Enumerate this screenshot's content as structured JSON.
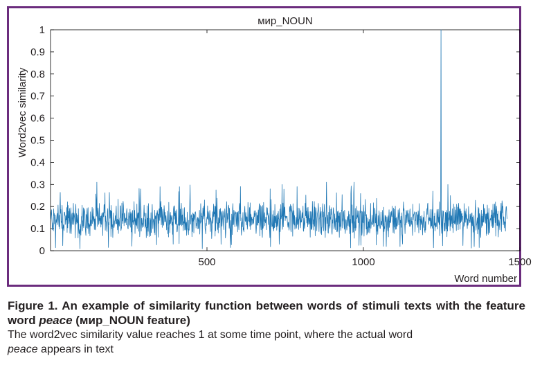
{
  "chart_data": {
    "type": "line",
    "title": "мир_NOUN",
    "xlabel": "Word number",
    "ylabel": "Word2vec similarity",
    "xlim": [
      0,
      1500
    ],
    "ylim": [
      0,
      1
    ],
    "xticks": [
      "500",
      "1000",
      "1500"
    ],
    "xtick_values": [
      500,
      1000,
      1500
    ],
    "yticks": [
      "0",
      "0.1",
      "0.2",
      "0.3",
      "0.4",
      "0.5",
      "0.6",
      "0.7",
      "0.8",
      "0.9",
      "1"
    ],
    "ytick_values": [
      0,
      0.1,
      0.2,
      0.3,
      0.4,
      0.5,
      0.6,
      0.7,
      0.8,
      0.9,
      1
    ],
    "grid": false,
    "series": [
      {
        "color": "#1f77b4",
        "n_points": 1460,
        "baseline_mean": 0.14,
        "typical_range": [
          0.02,
          0.31
        ],
        "peaks": [
          {
            "x": 1248,
            "y": 1
          }
        ]
      }
    ]
  },
  "caption": {
    "title_pre": "Figure 1. An example of similarity function between words of stimuli texts with the feature word ",
    "title_italic": "peace",
    "title_post": " (мир_NOUN feature)",
    "body_line1": "The word2vec similarity value reaches 1 at some time point, where the actual word",
    "body_italic": "peace",
    "body_post": " appears in text"
  },
  "colors": {
    "frame": "#6b2c7d",
    "line": "#1f77b4",
    "axis": "#000000"
  }
}
